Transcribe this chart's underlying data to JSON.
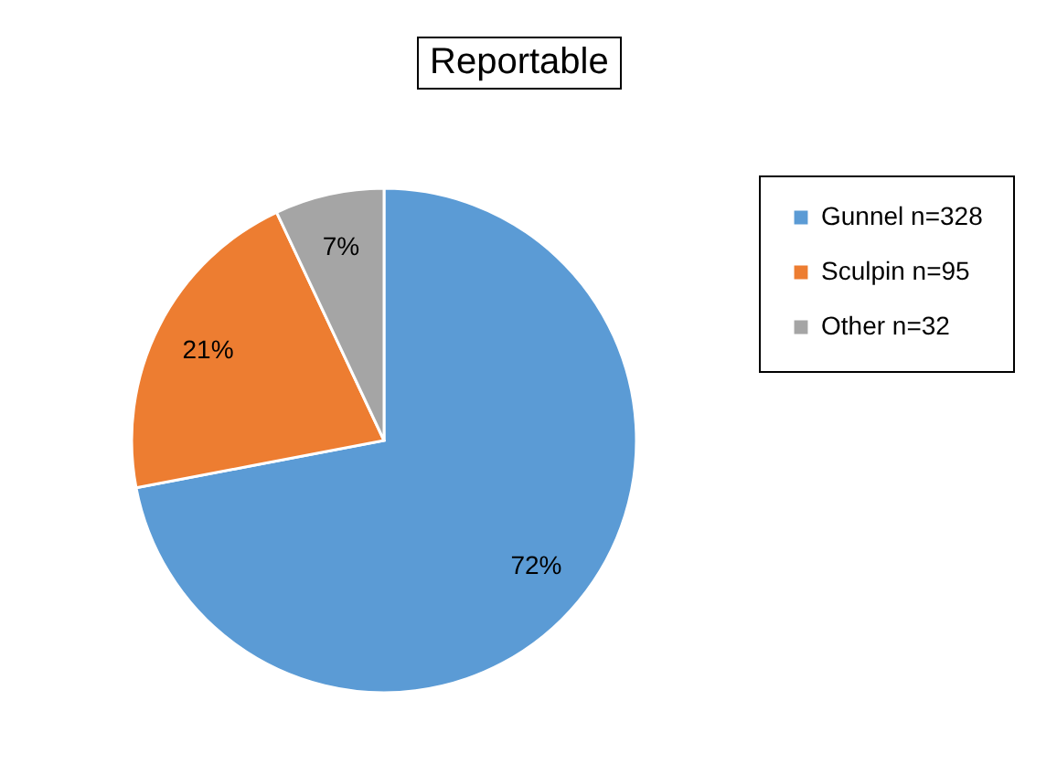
{
  "chart_data": {
    "type": "pie",
    "title": "Reportable",
    "categories": [
      "Gunnel n=328",
      "Sculpin n=95",
      "Other n=32"
    ],
    "values": [
      72,
      21,
      7
    ],
    "colors": [
      "#5b9bd5",
      "#ed7d31",
      "#a5a5a5"
    ],
    "value_labels": [
      "72%",
      "21%",
      "7%"
    ],
    "legend": "right"
  }
}
